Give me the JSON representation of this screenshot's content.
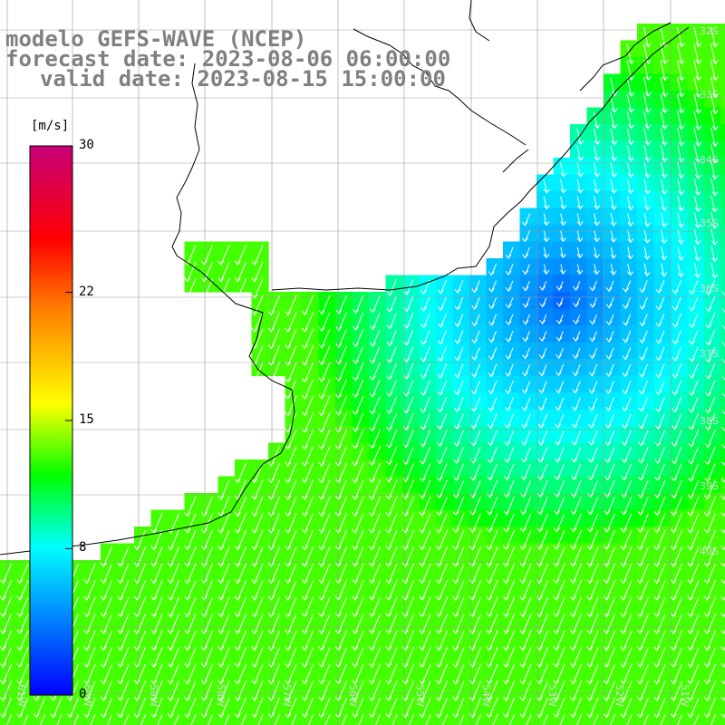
{
  "title": {
    "line1": "modelo GEFS-WAVE (NCEP)",
    "line2": "forecast date: 2023-08-06 06:00:00",
    "line3": "valid date: 2023-08-15 15:00:00"
  },
  "colorbar": {
    "unit": "[m/s]",
    "ticks": [
      "30",
      "22",
      "15",
      "8",
      "0"
    ],
    "tick_values": [
      30,
      22,
      15,
      8,
      0
    ],
    "range": [
      0,
      30
    ],
    "colors": [
      "#0000ff",
      "#00aaff",
      "#00ffff",
      "#00ff00",
      "#ffff00",
      "#ff8000",
      "#ff0000",
      "#c8007a"
    ]
  },
  "map": {
    "variable": "wind speed and direction",
    "land_color": "#ffffff",
    "lat_labels": [
      "32S",
      "33S",
      "34S",
      "35S",
      "36S",
      "37S",
      "38S",
      "39S",
      "40S"
    ],
    "lon_labels": [
      "61W",
      "60W",
      "59W",
      "58W",
      "57W",
      "56W",
      "55W",
      "54W",
      "53W",
      "52W",
      "51W"
    ]
  }
}
